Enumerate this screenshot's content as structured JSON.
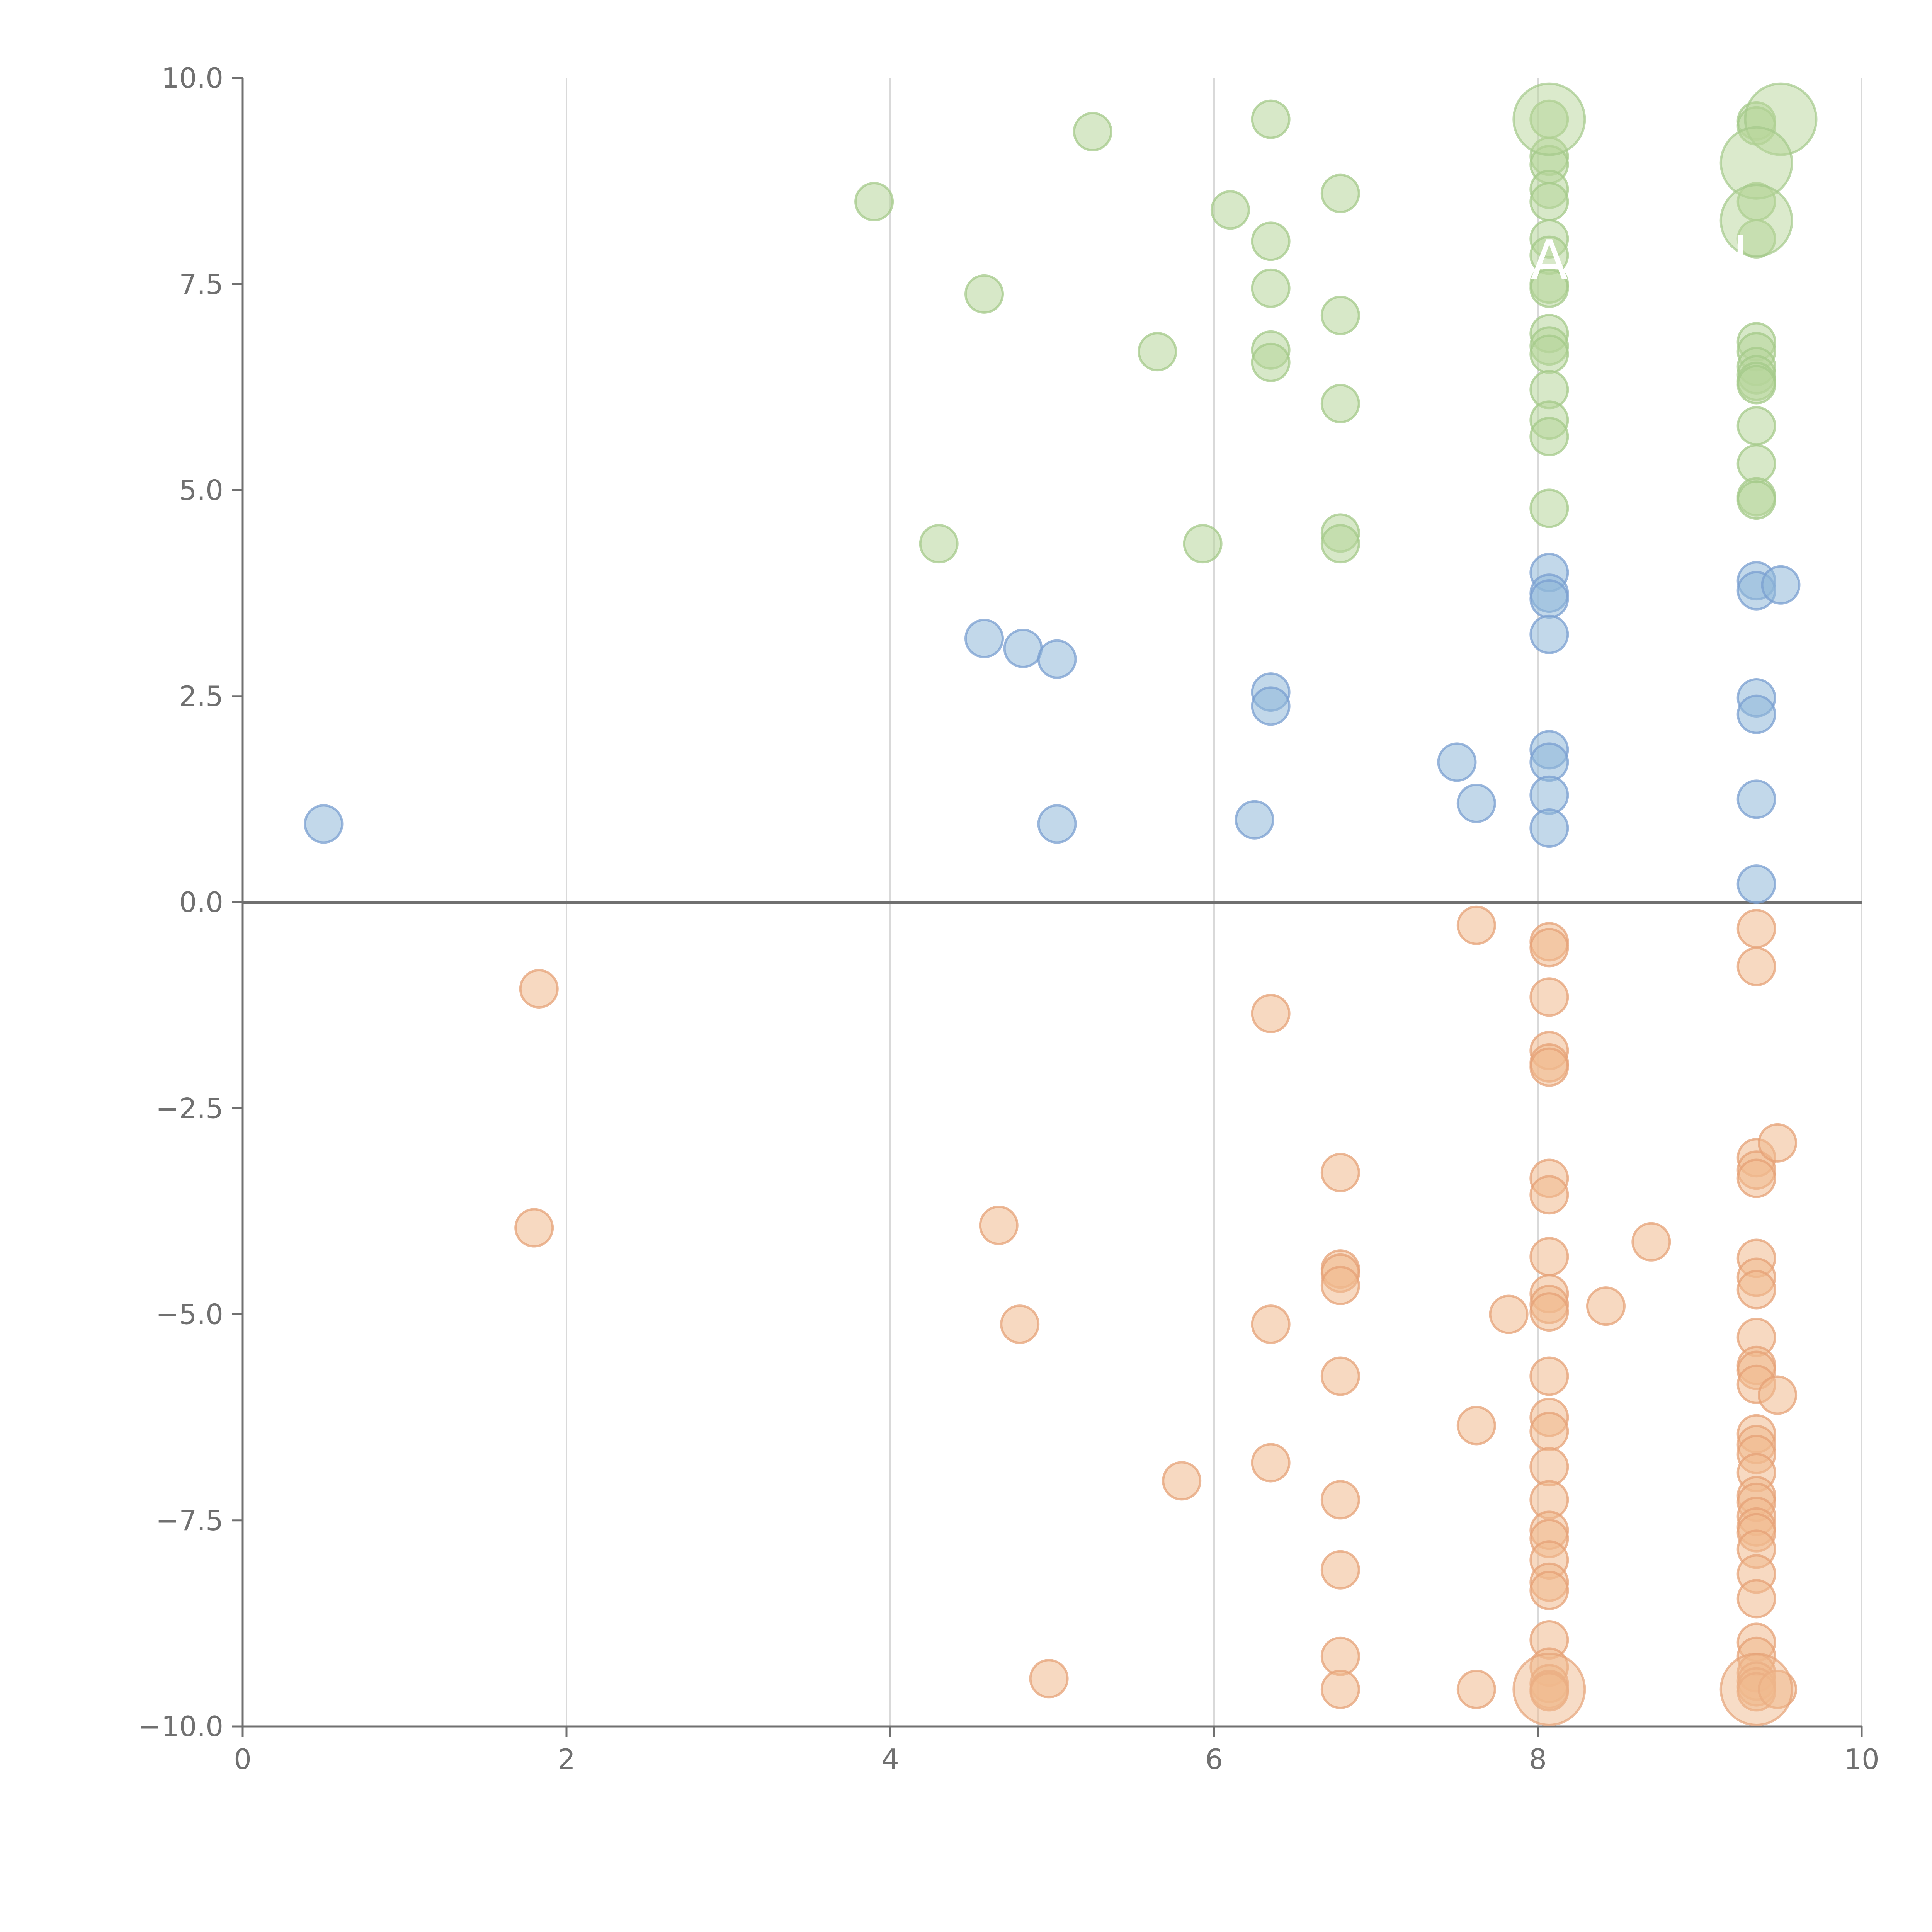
{
  "chart_data": {
    "type": "scatter",
    "title": "",
    "xlabel": "",
    "ylabel": "",
    "xlim": [
      0,
      10
    ],
    "ylim": [
      -10,
      10
    ],
    "x_ticks": [
      0,
      2,
      4,
      6,
      8,
      10
    ],
    "x_tick_labels": [
      "0",
      "2",
      "4",
      "6",
      "8",
      "10"
    ],
    "y_ticks": [
      10,
      7.5,
      5,
      2.5,
      0,
      -2.5,
      -5,
      -7.5,
      -10
    ],
    "y_tick_labels": [
      "10.0",
      "7.5",
      "5.0",
      "2.5",
      "0.0",
      "−2.5",
      "−5.0",
      "−7.5",
      "−10.0"
    ],
    "vertical_grid": true,
    "zero_line": true,
    "legend": "none",
    "series": [
      {
        "color": "#8FB8D8",
        "stroke": "#7A9FD0",
        "points": [
          [
            0.5,
            0.95
          ],
          [
            4.58,
            3.2
          ],
          [
            4.82,
            3.08
          ],
          [
            5.03,
            2.95
          ],
          [
            5.03,
            0.95
          ],
          [
            6.25,
            1.0
          ],
          [
            6.35,
            2.55
          ],
          [
            6.35,
            2.38
          ],
          [
            7.5,
            1.7
          ],
          [
            7.62,
            1.2
          ],
          [
            8.07,
            4.0
          ],
          [
            8.07,
            3.75
          ],
          [
            8.07,
            3.68
          ],
          [
            8.07,
            3.25
          ],
          [
            8.07,
            1.85
          ],
          [
            8.07,
            1.7
          ],
          [
            8.07,
            1.3
          ],
          [
            8.07,
            0.9
          ],
          [
            9.35,
            3.9
          ],
          [
            9.35,
            3.78
          ],
          [
            9.5,
            3.85
          ],
          [
            9.35,
            2.48
          ],
          [
            9.35,
            2.28
          ],
          [
            9.35,
            1.25
          ],
          [
            9.35,
            0.22
          ]
        ],
        "large_points": []
      },
      {
        "color": "#B7D69A",
        "stroke": "#A4C98A",
        "points": [
          [
            3.9,
            8.5
          ],
          [
            4.3,
            4.35
          ],
          [
            4.58,
            7.38
          ],
          [
            5.25,
            9.35
          ],
          [
            5.65,
            6.68
          ],
          [
            5.93,
            4.35
          ],
          [
            6.1,
            8.4
          ],
          [
            6.35,
            9.5
          ],
          [
            6.35,
            8.02
          ],
          [
            6.35,
            7.45
          ],
          [
            6.35,
            6.7
          ],
          [
            6.35,
            6.55
          ],
          [
            6.78,
            8.6
          ],
          [
            6.78,
            7.12
          ],
          [
            6.78,
            6.05
          ],
          [
            6.78,
            4.48
          ],
          [
            6.78,
            4.35
          ],
          [
            8.07,
            9.5
          ],
          [
            8.07,
            9.05
          ],
          [
            8.07,
            8.95
          ],
          [
            8.07,
            8.65
          ],
          [
            8.07,
            8.5
          ],
          [
            8.07,
            8.05
          ],
          [
            8.07,
            7.85
          ],
          [
            8.07,
            7.5
          ],
          [
            8.07,
            7.45
          ],
          [
            8.07,
            6.9
          ],
          [
            8.07,
            6.75
          ],
          [
            8.07,
            6.65
          ],
          [
            8.07,
            6.22
          ],
          [
            8.07,
            5.85
          ],
          [
            8.07,
            5.65
          ],
          [
            8.07,
            4.78
          ],
          [
            9.35,
            9.48
          ],
          [
            9.35,
            9.42
          ],
          [
            9.35,
            8.5
          ],
          [
            9.35,
            8.05
          ],
          [
            9.35,
            6.8
          ],
          [
            9.35,
            6.68
          ],
          [
            9.35,
            6.5
          ],
          [
            9.35,
            6.4
          ],
          [
            9.35,
            6.32
          ],
          [
            9.35,
            6.28
          ],
          [
            9.35,
            5.78
          ],
          [
            9.35,
            5.32
          ],
          [
            9.35,
            4.92
          ],
          [
            9.35,
            4.88
          ]
        ],
        "large_points": [
          [
            8.07,
            9.5
          ],
          [
            9.5,
            9.5
          ],
          [
            9.35,
            8.97
          ],
          [
            9.35,
            8.27
          ]
        ]
      },
      {
        "color": "#F0B98E",
        "stroke": "#E5A277",
        "points": [
          [
            1.83,
            -1.05
          ],
          [
            1.8,
            -3.95
          ],
          [
            4.67,
            -3.92
          ],
          [
            4.8,
            -5.12
          ],
          [
            4.98,
            -9.42
          ],
          [
            5.8,
            -7.02
          ],
          [
            6.35,
            -1.35
          ],
          [
            6.35,
            -5.12
          ],
          [
            6.35,
            -6.8
          ],
          [
            6.78,
            -3.28
          ],
          [
            6.78,
            -4.45
          ],
          [
            6.78,
            -4.5
          ],
          [
            6.78,
            -4.65
          ],
          [
            6.78,
            -5.75
          ],
          [
            6.78,
            -7.25
          ],
          [
            6.78,
            -8.1
          ],
          [
            6.78,
            -9.15
          ],
          [
            6.78,
            -9.55
          ],
          [
            7.62,
            -0.28
          ],
          [
            7.62,
            -6.35
          ],
          [
            7.62,
            -9.55
          ],
          [
            7.82,
            -5.0
          ],
          [
            8.07,
            -0.48
          ],
          [
            8.07,
            -0.55
          ],
          [
            8.07,
            -1.15
          ],
          [
            8.07,
            -1.8
          ],
          [
            8.07,
            -1.95
          ],
          [
            8.07,
            -2.0
          ],
          [
            8.07,
            -3.35
          ],
          [
            8.07,
            -3.55
          ],
          [
            8.07,
            -4.3
          ],
          [
            8.07,
            -4.75
          ],
          [
            8.07,
            -4.88
          ],
          [
            8.07,
            -4.97
          ],
          [
            8.07,
            -5.75
          ],
          [
            8.07,
            -6.25
          ],
          [
            8.07,
            -6.42
          ],
          [
            8.07,
            -6.85
          ],
          [
            8.07,
            -7.25
          ],
          [
            8.07,
            -7.62
          ],
          [
            8.07,
            -7.72
          ],
          [
            8.07,
            -7.98
          ],
          [
            8.07,
            -8.25
          ],
          [
            8.07,
            -8.35
          ],
          [
            8.07,
            -8.95
          ],
          [
            8.07,
            -9.28
          ],
          [
            8.07,
            -9.48
          ],
          [
            8.07,
            -9.55
          ],
          [
            8.07,
            -9.58
          ],
          [
            8.42,
            -4.9
          ],
          [
            8.7,
            -4.12
          ],
          [
            9.35,
            -0.32
          ],
          [
            9.35,
            -0.78
          ],
          [
            9.35,
            -3.1
          ],
          [
            9.35,
            -3.25
          ],
          [
            9.35,
            -3.35
          ],
          [
            9.35,
            -4.32
          ],
          [
            9.35,
            -4.55
          ],
          [
            9.35,
            -4.7
          ],
          [
            9.35,
            -5.28
          ],
          [
            9.35,
            -5.62
          ],
          [
            9.35,
            -5.68
          ],
          [
            9.35,
            -5.85
          ],
          [
            9.35,
            -6.45
          ],
          [
            9.35,
            -6.58
          ],
          [
            9.35,
            -6.7
          ],
          [
            9.35,
            -6.92
          ],
          [
            9.35,
            -7.2
          ],
          [
            9.35,
            -7.28
          ],
          [
            9.35,
            -7.45
          ],
          [
            9.35,
            -7.58
          ],
          [
            9.35,
            -7.65
          ],
          [
            9.35,
            -7.85
          ],
          [
            9.35,
            -8.15
          ],
          [
            9.35,
            -8.45
          ],
          [
            9.35,
            -8.98
          ],
          [
            9.35,
            -9.15
          ],
          [
            9.35,
            -9.35
          ],
          [
            9.35,
            -9.45
          ],
          [
            9.35,
            -9.52
          ],
          [
            9.35,
            -9.58
          ],
          [
            9.48,
            -2.92
          ],
          [
            9.48,
            -5.98
          ],
          [
            9.48,
            -9.55
          ]
        ],
        "large_points": [
          [
            8.07,
            -9.55
          ],
          [
            9.35,
            -9.55
          ]
        ]
      }
    ],
    "annotations": [
      {
        "text": "A",
        "x": 8.07,
        "y": 7.8
      },
      {
        "text": "I",
        "x": 9.25,
        "y": 7.85
      }
    ]
  }
}
